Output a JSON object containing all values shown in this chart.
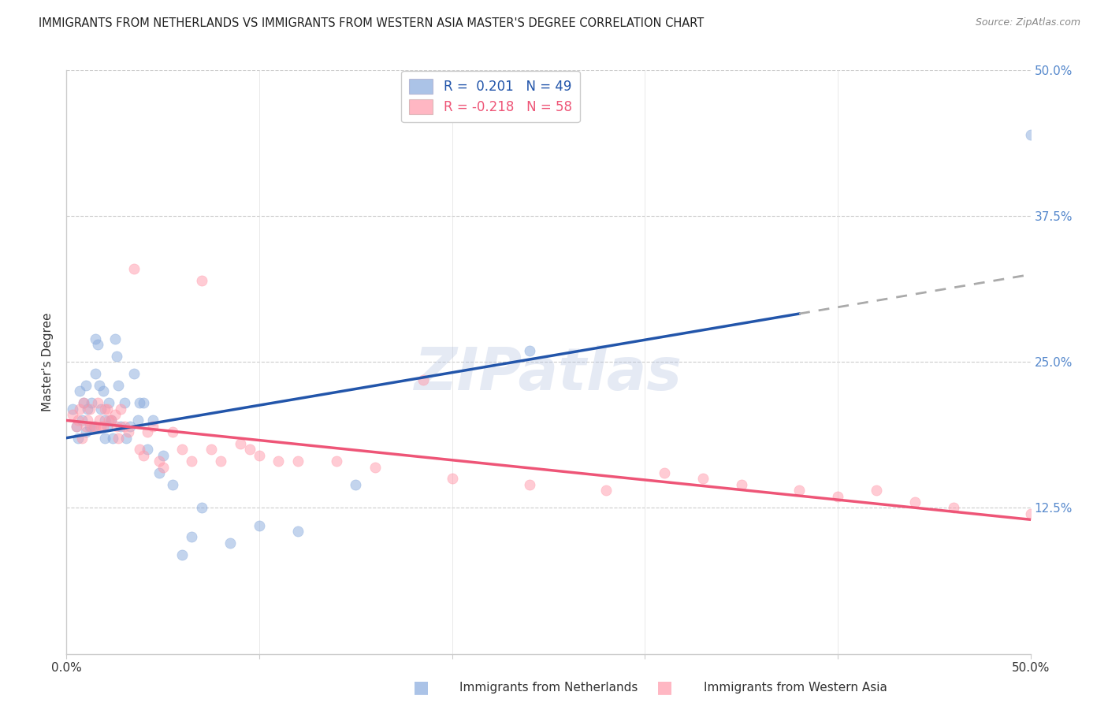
{
  "title": "IMMIGRANTS FROM NETHERLANDS VS IMMIGRANTS FROM WESTERN ASIA MASTER'S DEGREE CORRELATION CHART",
  "source": "Source: ZipAtlas.com",
  "ylabel": "Master's Degree",
  "xlabel_legend1": "Immigrants from Netherlands",
  "xlabel_legend2": "Immigrants from Western Asia",
  "legend_r1": "R =  0.201",
  "legend_n1": "N = 49",
  "legend_r2": "R = -0.218",
  "legend_n2": "N = 58",
  "color_blue": "#88AADD",
  "color_pink": "#FF99AA",
  "trend_blue": "#2255AA",
  "trend_pink": "#EE5577",
  "watermark": "ZIPatlas",
  "watermark_color": "#AABBDD",
  "xlim": [
    0.0,
    0.5
  ],
  "ylim": [
    0.0,
    0.5
  ],
  "blue_trend_y_start": 0.185,
  "blue_trend_y_end": 0.325,
  "blue_trend_solid_end": 0.38,
  "pink_trend_y_start": 0.2,
  "pink_trend_y_end": 0.115,
  "bg_color": "#FFFFFF",
  "grid_color": "#CCCCCC",
  "blue_x": [
    0.003,
    0.005,
    0.006,
    0.007,
    0.008,
    0.009,
    0.01,
    0.01,
    0.011,
    0.012,
    0.013,
    0.014,
    0.015,
    0.015,
    0.016,
    0.017,
    0.018,
    0.019,
    0.02,
    0.02,
    0.021,
    0.022,
    0.023,
    0.024,
    0.025,
    0.026,
    0.027,
    0.028,
    0.03,
    0.031,
    0.033,
    0.035,
    0.037,
    0.038,
    0.04,
    0.042,
    0.045,
    0.048,
    0.05,
    0.055,
    0.06,
    0.065,
    0.07,
    0.085,
    0.1,
    0.12,
    0.15,
    0.24,
    0.5
  ],
  "blue_y": [
    0.21,
    0.195,
    0.185,
    0.225,
    0.2,
    0.215,
    0.23,
    0.19,
    0.21,
    0.195,
    0.215,
    0.195,
    0.27,
    0.24,
    0.265,
    0.23,
    0.21,
    0.225,
    0.2,
    0.185,
    0.195,
    0.215,
    0.2,
    0.185,
    0.27,
    0.255,
    0.23,
    0.195,
    0.215,
    0.185,
    0.195,
    0.24,
    0.2,
    0.215,
    0.215,
    0.175,
    0.2,
    0.155,
    0.17,
    0.145,
    0.085,
    0.1,
    0.125,
    0.095,
    0.11,
    0.105,
    0.145,
    0.26,
    0.445
  ],
  "pink_x": [
    0.003,
    0.005,
    0.006,
    0.007,
    0.008,
    0.009,
    0.01,
    0.011,
    0.012,
    0.013,
    0.015,
    0.016,
    0.017,
    0.018,
    0.019,
    0.02,
    0.021,
    0.022,
    0.023,
    0.025,
    0.026,
    0.027,
    0.028,
    0.03,
    0.032,
    0.035,
    0.038,
    0.04,
    0.042,
    0.045,
    0.048,
    0.05,
    0.055,
    0.06,
    0.065,
    0.07,
    0.075,
    0.08,
    0.09,
    0.095,
    0.1,
    0.11,
    0.12,
    0.14,
    0.16,
    0.185,
    0.2,
    0.24,
    0.28,
    0.31,
    0.33,
    0.35,
    0.38,
    0.4,
    0.42,
    0.44,
    0.46,
    0.5
  ],
  "pink_y": [
    0.205,
    0.195,
    0.2,
    0.21,
    0.185,
    0.215,
    0.195,
    0.2,
    0.21,
    0.195,
    0.195,
    0.215,
    0.2,
    0.195,
    0.195,
    0.21,
    0.21,
    0.2,
    0.2,
    0.205,
    0.195,
    0.185,
    0.21,
    0.195,
    0.19,
    0.33,
    0.175,
    0.17,
    0.19,
    0.195,
    0.165,
    0.16,
    0.19,
    0.175,
    0.165,
    0.32,
    0.175,
    0.165,
    0.18,
    0.175,
    0.17,
    0.165,
    0.165,
    0.165,
    0.16,
    0.235,
    0.15,
    0.145,
    0.14,
    0.155,
    0.15,
    0.145,
    0.14,
    0.135,
    0.14,
    0.13,
    0.125,
    0.12
  ]
}
